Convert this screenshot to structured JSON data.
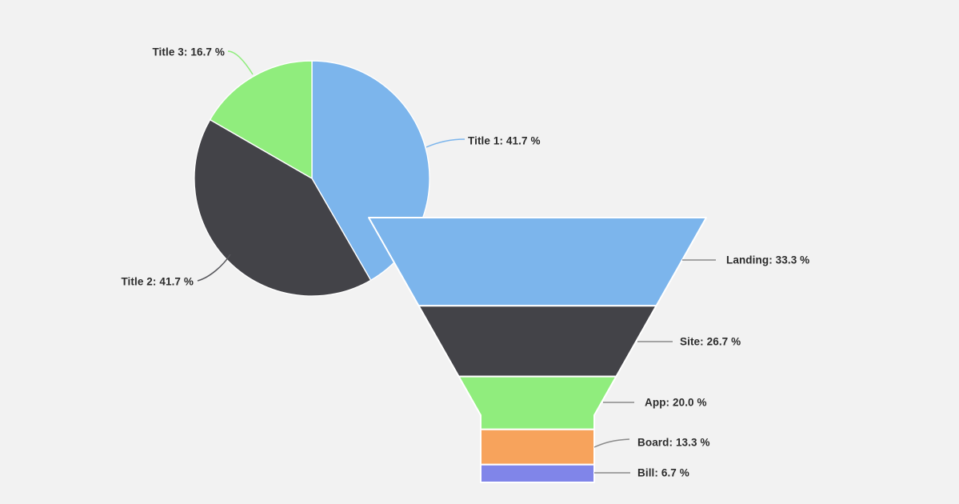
{
  "background_color": "#f2f2f2",
  "styles": {
    "label_color": "#2b2b2b",
    "slice_border_color": "#ffffff",
    "funnel_connector_color": "#8a8a8a"
  },
  "chart_data": [
    {
      "type": "pie",
      "title": "",
      "unit": "%",
      "direction": "clockwise",
      "start_angle_deg": 0,
      "legend": false,
      "slices": [
        {
          "name": "Title 1",
          "value": 41.7,
          "label": "Title 1: 41.7 %",
          "color": "#7cb5ec",
          "connector_color": "#7cb5ec"
        },
        {
          "name": "Title 2",
          "value": 41.7,
          "label": "Title 2: 41.7 %",
          "color": "#434348",
          "connector_color": "#55555a"
        },
        {
          "name": "Title 3",
          "value": 16.7,
          "label": "Title 3: 16.7 %",
          "color": "#90ed7d",
          "connector_color": "#90ed7d"
        }
      ]
    },
    {
      "type": "funnel",
      "title": "",
      "unit": "%",
      "legend": false,
      "stages": [
        {
          "name": "Landing",
          "value": 33.3,
          "label": "Landing: 33.3 %",
          "color": "#7cb5ec"
        },
        {
          "name": "Site",
          "value": 26.7,
          "label": "Site: 26.7 %",
          "color": "#434348"
        },
        {
          "name": "App",
          "value": 20.0,
          "label": "App: 20.0 %",
          "color": "#90ed7d"
        },
        {
          "name": "Board",
          "value": 13.3,
          "label": "Board: 13.3 %",
          "color": "#f7a35c"
        },
        {
          "name": "Bill",
          "value": 6.7,
          "label": "Bill: 6.7 %",
          "color": "#8085e9"
        }
      ]
    }
  ]
}
